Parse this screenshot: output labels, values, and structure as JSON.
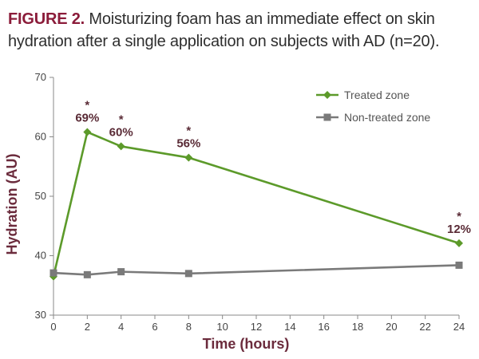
{
  "caption": {
    "label": "FIGURE 2.",
    "text": " Moisturizing foam has an immediate effect on skin hydration after a single application on subjects with AD (n=20)."
  },
  "colors": {
    "treated": "#5c9a2a",
    "non_treated": "#7a7a7a",
    "accent": "#8b1c3a"
  },
  "chart_data": {
    "type": "line",
    "xlabel": "Time (hours)",
    "ylabel": "Hydration (AU)",
    "xlim": [
      0,
      24
    ],
    "ylim": [
      30,
      70
    ],
    "xticks": [
      0,
      2,
      4,
      6,
      8,
      10,
      12,
      14,
      16,
      18,
      20,
      22,
      24
    ],
    "yticks": [
      30,
      40,
      50,
      60,
      70
    ],
    "grid": false,
    "legend_position": "top-right",
    "series": [
      {
        "name": "Treated zone",
        "marker": "diamond",
        "x": [
          0,
          2,
          4,
          8,
          24
        ],
        "y": [
          36.5,
          60.8,
          58.4,
          56.5,
          42.1
        ]
      },
      {
        "name": "Non-treated zone",
        "marker": "square",
        "x": [
          0,
          2,
          4,
          8,
          24
        ],
        "y": [
          37.1,
          36.8,
          37.3,
          37.0,
          38.4
        ]
      }
    ],
    "annotations": [
      {
        "x": 2,
        "y": 60.8,
        "star": "*",
        "text": "69%"
      },
      {
        "x": 4,
        "y": 58.4,
        "star": "*",
        "text": "60%"
      },
      {
        "x": 8,
        "y": 56.5,
        "star": "*",
        "text": "56%"
      },
      {
        "x": 24,
        "y": 42.1,
        "star": "*",
        "text": "12%"
      }
    ]
  }
}
